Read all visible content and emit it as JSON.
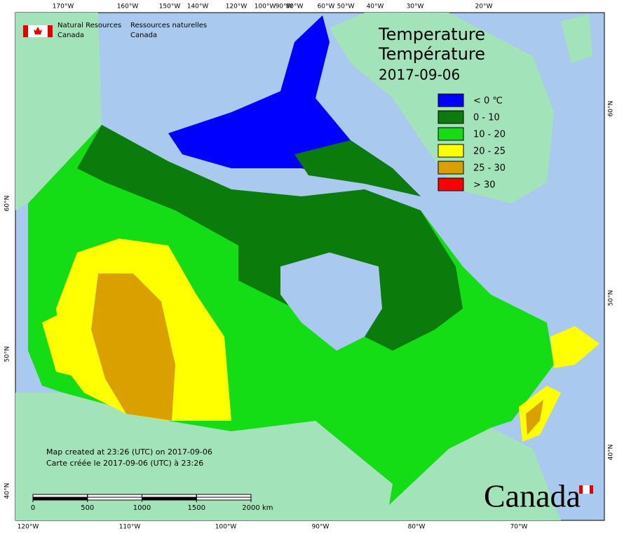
{
  "header": {
    "agency_en": [
      "Natural Resources",
      "Canada"
    ],
    "agency_fr": [
      "Ressources naturelles",
      "Canada"
    ]
  },
  "title": [
    "Temperature",
    "Température",
    "2017-09-06"
  ],
  "legend": [
    {
      "label": "< 0 ℃",
      "color": "#0000ff"
    },
    {
      "label": "0 - 10",
      "color": "#0b7b0b"
    },
    {
      "label": "10 - 20",
      "color": "#15dd15"
    },
    {
      "label": "20 - 25",
      "color": "#ffff00"
    },
    {
      "label": "25 - 30",
      "color": "#daa000"
    },
    {
      "label": "> 30",
      "color": "#ff0000"
    }
  ],
  "graticule": {
    "top": [
      "170°W",
      "160°W",
      "150°W",
      "140°W",
      "120°W",
      "100°W",
      "90°W",
      "80°W",
      "60°W",
      "50°W",
      "40°W",
      "30°W",
      "20°W"
    ],
    "bottom": [
      "120°W",
      "110°W",
      "100°W",
      "90°W",
      "80°W",
      "70°W"
    ],
    "left": [
      "60°N",
      "50°N",
      "40°N"
    ],
    "right": [
      "60°N",
      "50°N",
      "40°N"
    ]
  },
  "footer": [
    "Map created at 23:26 (UTC) on 2017-09-06",
    "Carte créée le 2017-09-06 (UTC) à 23:26"
  ],
  "scale_bar": {
    "ticks": [
      0,
      500,
      1000,
      1500,
      2000
    ],
    "unit": "km"
  },
  "wordmark": "Canada"
}
